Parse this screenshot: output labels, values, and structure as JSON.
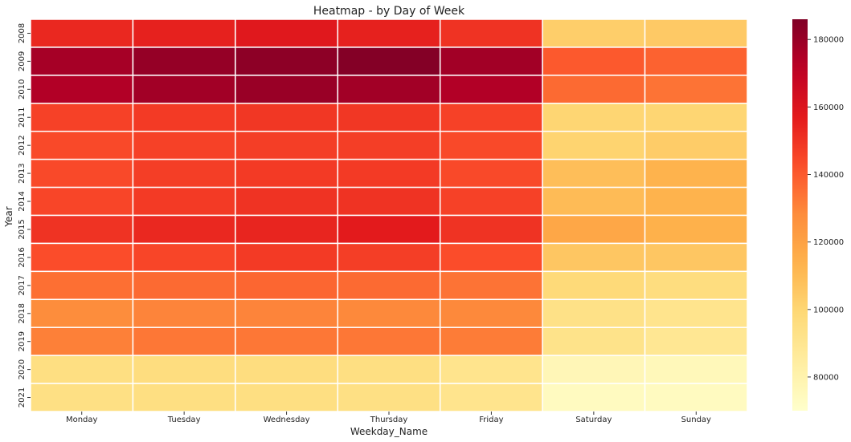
{
  "chart_data": {
    "type": "heatmap",
    "title": "Heatmap - by Day of Week",
    "xlabel": "Weekday_Name",
    "ylabel": "Year",
    "x_categories": [
      "Monday",
      "Tuesday",
      "Wednesday",
      "Thursday",
      "Friday",
      "Saturday",
      "Sunday"
    ],
    "y_categories": [
      "2008",
      "2009",
      "2010",
      "2011",
      "2012",
      "2013",
      "2014",
      "2015",
      "2016",
      "2017",
      "2018",
      "2019",
      "2020",
      "2021"
    ],
    "values": [
      [
        153000,
        155000,
        158000,
        155000,
        150000,
        103000,
        105000
      ],
      [
        177000,
        181000,
        183000,
        185000,
        178000,
        140000,
        138000
      ],
      [
        174000,
        178000,
        180000,
        178000,
        174000,
        136000,
        134000
      ],
      [
        146000,
        148000,
        149000,
        149000,
        146000,
        100000,
        100000
      ],
      [
        144000,
        146000,
        147000,
        147000,
        144000,
        101000,
        104000
      ],
      [
        144000,
        147000,
        148000,
        148000,
        144000,
        109000,
        113000
      ],
      [
        145000,
        148000,
        150000,
        150000,
        146000,
        110000,
        113000
      ],
      [
        150000,
        153000,
        154000,
        157000,
        150000,
        118000,
        114000
      ],
      [
        143000,
        145000,
        148000,
        147000,
        143000,
        106000,
        106000
      ],
      [
        135000,
        136000,
        137000,
        136000,
        134000,
        98000,
        96000
      ],
      [
        128000,
        130000,
        130000,
        129000,
        129000,
        93000,
        91000
      ],
      [
        131000,
        133000,
        133000,
        133000,
        132000,
        92000,
        89000
      ],
      [
        95000,
        96000,
        96000,
        95000,
        91000,
        77000,
        76000
      ],
      [
        94000,
        95000,
        95000,
        94000,
        91000,
        74000,
        74000
      ]
    ],
    "colorbar": {
      "range": [
        70000,
        186000
      ],
      "ticks": [
        80000,
        100000,
        120000,
        140000,
        160000,
        180000
      ],
      "colormap": "YlOrRd"
    },
    "grid": true,
    "legend": "colorbar-right"
  }
}
